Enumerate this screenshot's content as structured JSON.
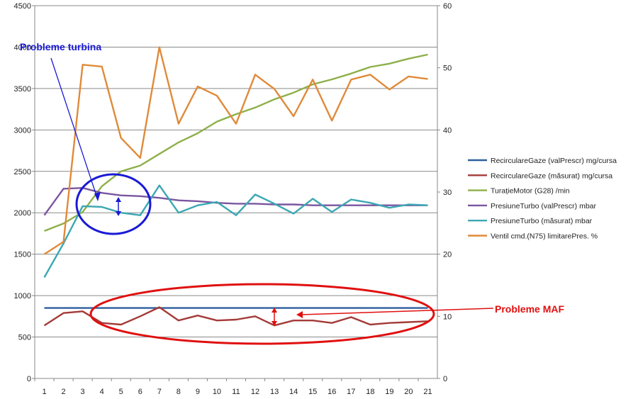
{
  "chart_data": {
    "type": "line",
    "x": [
      1,
      2,
      3,
      4,
      5,
      6,
      7,
      8,
      9,
      10,
      11,
      12,
      13,
      14,
      15,
      16,
      17,
      18,
      19,
      20,
      21
    ],
    "y_left": {
      "min": 0,
      "max": 4500,
      "ticks": [
        0,
        500,
        1000,
        1500,
        2000,
        2500,
        3000,
        3500,
        4000,
        4500
      ]
    },
    "y_right": {
      "min": 0,
      "max": 60,
      "ticks": [
        0,
        10,
        20,
        30,
        40,
        50,
        60
      ]
    },
    "grid": true,
    "legend_position": "right",
    "series": [
      {
        "name": "RecirculareGaze (valPrescr)  mg/cursa",
        "axis": "left",
        "color": "#2e5f9e",
        "values": [
          850,
          850,
          850,
          850,
          850,
          850,
          850,
          850,
          850,
          850,
          850,
          850,
          850,
          850,
          850,
          850,
          850,
          850,
          850,
          850,
          850
        ]
      },
      {
        "name": "RecirculareGaze (măsurat)  mg/cursa",
        "axis": "left",
        "color": "#a33b38",
        "values": [
          640,
          790,
          810,
          670,
          650,
          750,
          860,
          700,
          760,
          700,
          710,
          750,
          640,
          700,
          700,
          670,
          740,
          650,
          670,
          680,
          690
        ]
      },
      {
        "name": "TurațieMotor (G28)  /min",
        "axis": "left",
        "color": "#8db049",
        "values": [
          1780,
          1870,
          2010,
          2320,
          2500,
          2570,
          2710,
          2850,
          2960,
          3100,
          3190,
          3270,
          3370,
          3450,
          3550,
          3610,
          3680,
          3760,
          3800,
          3860,
          3910
        ]
      },
      {
        "name": "PresiuneTurbo (valPrescr)  mbar",
        "axis": "left",
        "color": "#7a56a0",
        "values": [
          1970,
          2290,
          2300,
          2240,
          2210,
          2200,
          2180,
          2150,
          2140,
          2120,
          2110,
          2110,
          2100,
          2100,
          2090,
          2090,
          2090,
          2090,
          2090,
          2090,
          2090
        ]
      },
      {
        "name": "PresiuneTurbo (măsurat)  mbar",
        "axis": "left",
        "color": "#3ba7b3",
        "values": [
          1220,
          1630,
          2080,
          2070,
          2000,
          1970,
          2330,
          2000,
          2090,
          2130,
          1970,
          2220,
          2110,
          1990,
          2170,
          2010,
          2160,
          2120,
          2060,
          2100,
          2090
        ]
      },
      {
        "name": "Ventil cmd.(N75) limitarePres.  %",
        "axis": "right",
        "color": "#e08a39",
        "values": [
          20,
          22,
          50.5,
          50.2,
          38.7,
          35.5,
          53.3,
          41,
          47,
          45.5,
          41,
          48.9,
          46.6,
          42.2,
          48.1,
          41.5,
          48.1,
          48.9,
          46.5,
          48.6,
          48.2
        ]
      }
    ],
    "annotations": [
      {
        "text": "Probleme turbina",
        "color": "#1a1ad6"
      },
      {
        "text": "Probleme MAF",
        "color": "#e01010"
      }
    ]
  }
}
